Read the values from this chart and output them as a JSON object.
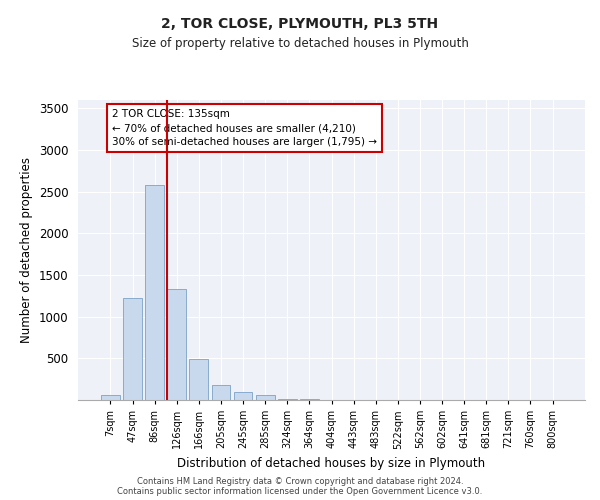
{
  "title": "2, TOR CLOSE, PLYMOUTH, PL3 5TH",
  "subtitle": "Size of property relative to detached houses in Plymouth",
  "xlabel": "Distribution of detached houses by size in Plymouth",
  "ylabel": "Number of detached properties",
  "categories": [
    "7sqm",
    "47sqm",
    "86sqm",
    "126sqm",
    "166sqm",
    "205sqm",
    "245sqm",
    "285sqm",
    "324sqm",
    "364sqm",
    "404sqm",
    "443sqm",
    "483sqm",
    "522sqm",
    "562sqm",
    "602sqm",
    "641sqm",
    "681sqm",
    "721sqm",
    "760sqm",
    "800sqm"
  ],
  "values": [
    55,
    1220,
    2580,
    1330,
    490,
    175,
    95,
    55,
    15,
    10,
    5,
    2,
    1,
    0,
    0,
    0,
    0,
    0,
    0,
    0,
    0
  ],
  "bar_color": "#c9d9ed",
  "bar_edge_color": "#7ba3c8",
  "background_color": "#eef2f8",
  "grid_color": "#ffffff",
  "vline_color": "#cc0000",
  "vline_x_index": 3,
  "annotation_text": "2 TOR CLOSE: 135sqm\n← 70% of detached houses are smaller (4,210)\n30% of semi-detached houses are larger (1,795) →",
  "annotation_box_edgecolor": "#cc0000",
  "ylim": [
    0,
    3600
  ],
  "yticks": [
    0,
    500,
    1000,
    1500,
    2000,
    2500,
    3000,
    3500
  ],
  "footer_line1": "Contains HM Land Registry data © Crown copyright and database right 2024.",
  "footer_line2": "Contains public sector information licensed under the Open Government Licence v3.0."
}
